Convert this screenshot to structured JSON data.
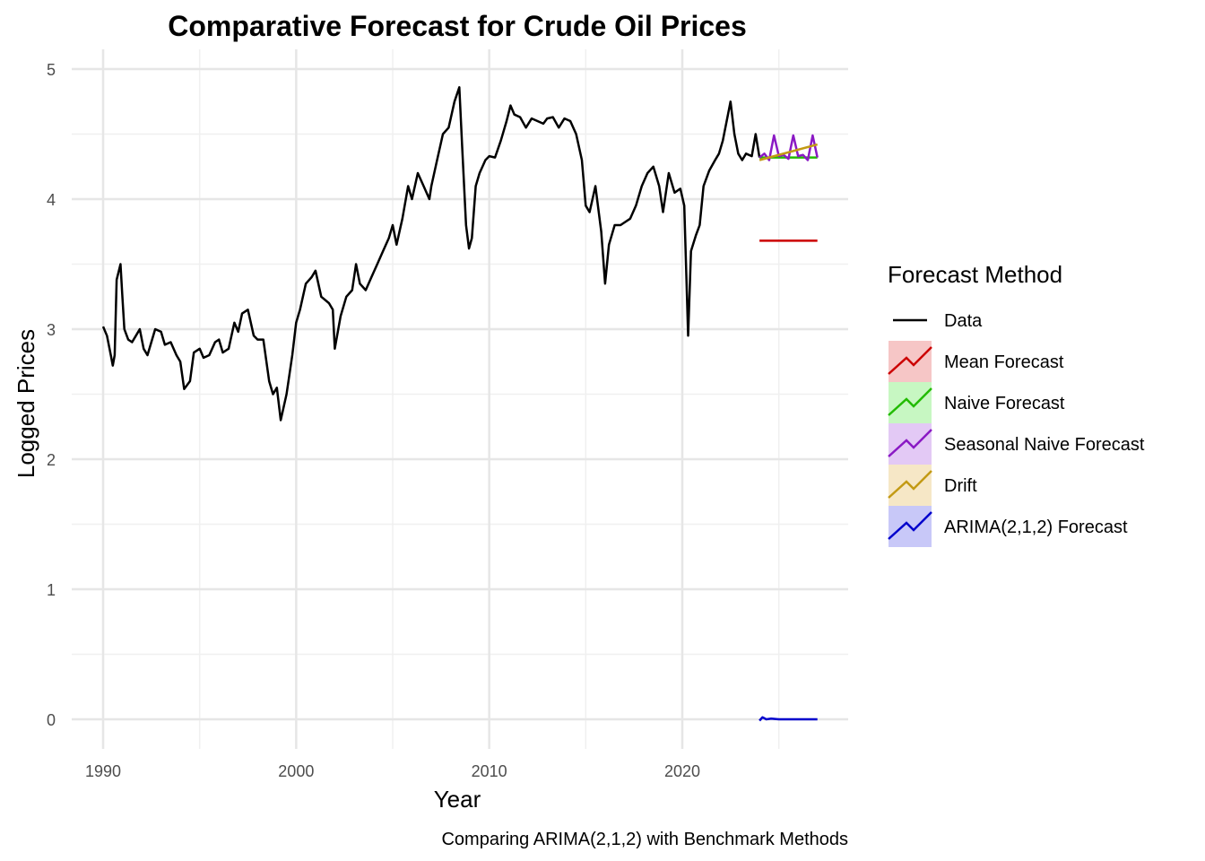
{
  "chart_data": {
    "type": "line",
    "title": "Comparative Forecast for Crude Oil Prices",
    "caption": "Comparing ARIMA(2,1,2) with Benchmark Methods",
    "xlabel": "Year",
    "ylabel": "Logged Prices",
    "xlim": [
      1990,
      2027
    ],
    "ylim": [
      0,
      5
    ],
    "x_ticks": [
      1990,
      2000,
      2010,
      2020
    ],
    "y_ticks": [
      0,
      1,
      2,
      3,
      4,
      5
    ],
    "grid": true,
    "legend_position": "right",
    "legend_title": "Forecast Method",
    "series": [
      {
        "name": "Data",
        "color": "#000000",
        "legend_icon": "line",
        "x": [
          1990.0,
          1990.2,
          1990.4,
          1990.5,
          1990.6,
          1990.7,
          1990.9,
          1991.0,
          1991.1,
          1991.3,
          1991.5,
          1991.7,
          1991.9,
          1992.1,
          1992.3,
          1992.5,
          1992.7,
          1993.0,
          1993.2,
          1993.5,
          1993.8,
          1994.0,
          1994.2,
          1994.5,
          1994.7,
          1995.0,
          1995.2,
          1995.5,
          1995.8,
          1996.0,
          1996.2,
          1996.5,
          1996.8,
          1997.0,
          1997.2,
          1997.5,
          1997.8,
          1998.0,
          1998.3,
          1998.6,
          1998.8,
          1999.0,
          1999.2,
          1999.5,
          1999.8,
          2000.0,
          2000.2,
          2000.5,
          2000.8,
          2001.0,
          2001.3,
          2001.7,
          2001.9,
          2002.0,
          2002.3,
          2002.6,
          2002.9,
          2003.1,
          2003.3,
          2003.6,
          2003.9,
          2004.2,
          2004.5,
          2004.8,
          2005.0,
          2005.2,
          2005.5,
          2005.8,
          2006.0,
          2006.3,
          2006.6,
          2006.9,
          2007.0,
          2007.3,
          2007.6,
          2007.9,
          2008.2,
          2008.45,
          2008.6,
          2008.8,
          2008.95,
          2009.1,
          2009.3,
          2009.5,
          2009.8,
          2010.0,
          2010.3,
          2010.6,
          2010.9,
          2011.1,
          2011.3,
          2011.6,
          2011.9,
          2012.2,
          2012.5,
          2012.8,
          2013.0,
          2013.3,
          2013.6,
          2013.9,
          2014.2,
          2014.5,
          2014.8,
          2015.0,
          2015.2,
          2015.5,
          2015.8,
          2016.0,
          2016.2,
          2016.5,
          2016.8,
          2017.0,
          2017.3,
          2017.6,
          2017.9,
          2018.2,
          2018.5,
          2018.8,
          2019.0,
          2019.3,
          2019.6,
          2019.9,
          2020.1,
          2020.3,
          2020.45,
          2020.7,
          2020.9,
          2021.1,
          2021.4,
          2021.7,
          2021.9,
          2022.1,
          2022.3,
          2022.5,
          2022.7,
          2022.9,
          2023.1,
          2023.3,
          2023.6,
          2023.8,
          2024.0
        ],
        "values": [
          3.02,
          2.95,
          2.8,
          2.72,
          2.8,
          3.38,
          3.5,
          3.25,
          3.0,
          2.92,
          2.9,
          2.95,
          3.0,
          2.85,
          2.8,
          2.9,
          3.0,
          2.98,
          2.88,
          2.9,
          2.8,
          2.75,
          2.54,
          2.6,
          2.82,
          2.85,
          2.78,
          2.8,
          2.9,
          2.92,
          2.82,
          2.85,
          3.05,
          2.98,
          3.12,
          3.15,
          2.95,
          2.92,
          2.92,
          2.6,
          2.5,
          2.55,
          2.3,
          2.5,
          2.8,
          3.05,
          3.15,
          3.35,
          3.4,
          3.45,
          3.25,
          3.2,
          3.15,
          2.85,
          3.1,
          3.25,
          3.3,
          3.5,
          3.35,
          3.3,
          3.4,
          3.5,
          3.6,
          3.7,
          3.8,
          3.65,
          3.85,
          4.1,
          4.0,
          4.2,
          4.1,
          4.0,
          4.1,
          4.3,
          4.5,
          4.55,
          4.75,
          4.86,
          4.4,
          3.8,
          3.62,
          3.7,
          4.1,
          4.2,
          4.3,
          4.33,
          4.32,
          4.45,
          4.6,
          4.72,
          4.65,
          4.63,
          4.55,
          4.62,
          4.6,
          4.58,
          4.62,
          4.63,
          4.55,
          4.62,
          4.6,
          4.5,
          4.3,
          3.95,
          3.9,
          4.1,
          3.75,
          3.35,
          3.65,
          3.8,
          3.8,
          3.82,
          3.85,
          3.95,
          4.1,
          4.2,
          4.25,
          4.1,
          3.9,
          4.2,
          4.05,
          4.08,
          3.95,
          2.95,
          3.6,
          3.72,
          3.8,
          4.1,
          4.22,
          4.3,
          4.35,
          4.45,
          4.6,
          4.75,
          4.5,
          4.35,
          4.3,
          4.35,
          4.33,
          4.5,
          4.32
        ]
      },
      {
        "name": "Mean Forecast",
        "color": "#cc0000",
        "fill": "#f6c6c6",
        "legend_icon": "ribbon",
        "x": [
          2024.0,
          2027.0
        ],
        "values": [
          3.68,
          3.68
        ]
      },
      {
        "name": "Naive Forecast",
        "color": "#22bb00",
        "fill": "#c7f7c2",
        "legend_icon": "ribbon",
        "x": [
          2024.0,
          2027.0
        ],
        "values": [
          4.32,
          4.32
        ]
      },
      {
        "name": "Seasonal Naive Forecast",
        "color": "#8a19c4",
        "fill": "#e3c9f5",
        "legend_icon": "ribbon",
        "x": [
          2024.0,
          2024.25,
          2024.5,
          2024.75,
          2025.0,
          2025.25,
          2025.5,
          2025.75,
          2026.0,
          2026.25,
          2026.5,
          2026.75,
          2027.0
        ],
        "values": [
          4.32,
          4.35,
          4.3,
          4.49,
          4.33,
          4.34,
          4.31,
          4.49,
          4.33,
          4.34,
          4.3,
          4.49,
          4.32
        ]
      },
      {
        "name": "Drift",
        "color": "#c39a14",
        "fill": "#f6e7c6",
        "legend_icon": "ribbon",
        "x": [
          2024.0,
          2027.0
        ],
        "values": [
          4.3,
          4.42
        ]
      },
      {
        "name": "ARIMA(2,1,2) Forecast",
        "color": "#0000cc",
        "fill": "#c8c8f8",
        "legend_icon": "ribbon",
        "x": [
          2024.0,
          2024.15,
          2024.35,
          2024.6,
          2025.0,
          2027.0
        ],
        "values": [
          -0.01,
          0.015,
          0.0,
          0.005,
          0.0,
          0.0
        ]
      }
    ]
  }
}
